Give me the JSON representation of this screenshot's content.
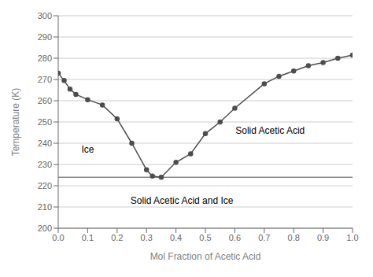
{
  "chart_data": {
    "type": "line",
    "xlabel": "Mol Fraction of Acetic Acid",
    "ylabel": "Temperature (K)",
    "x": [
      0.0,
      0.02,
      0.04,
      0.06,
      0.1,
      0.15,
      0.2,
      0.25,
      0.3,
      0.32,
      0.35,
      0.4,
      0.45,
      0.5,
      0.55,
      0.6,
      0.7,
      0.75,
      0.8,
      0.85,
      0.9,
      0.95,
      1.0
    ],
    "values": [
      273.0,
      269.5,
      265.5,
      263.0,
      260.5,
      258.0,
      251.5,
      240.0,
      227.5,
      224.5,
      224.0,
      231.0,
      235.0,
      244.5,
      250.0,
      256.5,
      268.0,
      271.5,
      274.0,
      276.5,
      278.0,
      280.0,
      281.5
    ],
    "color": "#4d4d4d",
    "marker": "circle",
    "xlim": [
      0,
      1
    ],
    "ylim": [
      200,
      300
    ],
    "xticks": [
      {
        "value": 0,
        "label": "0.0"
      },
      0.1,
      0.2,
      0.3,
      0.4,
      0.5,
      0.6,
      0.7,
      0.8,
      0.9,
      {
        "value": 1.0,
        "label": "1.0"
      }
    ],
    "yticks": [
      200,
      210,
      220,
      230,
      240,
      250,
      260,
      270,
      280,
      290,
      300
    ],
    "grid": true,
    "hlines": [
      224.0
    ],
    "annotations": [
      {
        "text": "Ice",
        "x": 0.1,
        "y": 237
      },
      {
        "text": "Solid Acetic Acid",
        "x": 0.72,
        "y": 246
      },
      {
        "text": "Solid Acetic Acid and Ice",
        "x": 0.42,
        "y": 213
      }
    ]
  }
}
